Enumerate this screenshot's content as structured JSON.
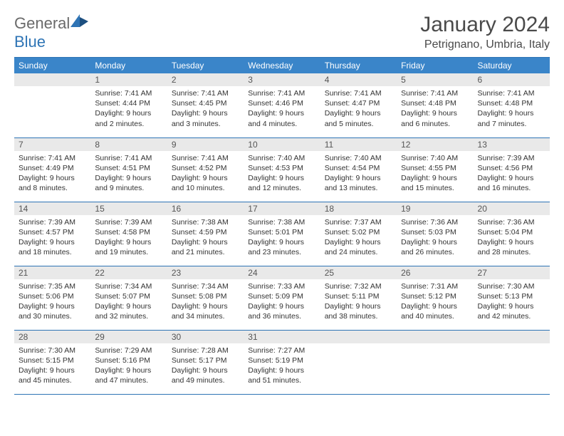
{
  "logo": {
    "word1": "General",
    "word2": "Blue"
  },
  "header": {
    "title": "January 2024",
    "location": "Petrignano, Umbria, Italy"
  },
  "colors": {
    "accent": "#3a85c9",
    "rule": "#2e74b5",
    "dayHeader": "#e9e9e9"
  },
  "weekdays": [
    "Sunday",
    "Monday",
    "Tuesday",
    "Wednesday",
    "Thursday",
    "Friday",
    "Saturday"
  ],
  "weeks": [
    [
      {
        "blank": true
      },
      {
        "n": "1",
        "sunrise": "7:41 AM",
        "sunset": "4:44 PM",
        "dayh": "9",
        "daym": "2"
      },
      {
        "n": "2",
        "sunrise": "7:41 AM",
        "sunset": "4:45 PM",
        "dayh": "9",
        "daym": "3"
      },
      {
        "n": "3",
        "sunrise": "7:41 AM",
        "sunset": "4:46 PM",
        "dayh": "9",
        "daym": "4"
      },
      {
        "n": "4",
        "sunrise": "7:41 AM",
        "sunset": "4:47 PM",
        "dayh": "9",
        "daym": "5"
      },
      {
        "n": "5",
        "sunrise": "7:41 AM",
        "sunset": "4:48 PM",
        "dayh": "9",
        "daym": "6"
      },
      {
        "n": "6",
        "sunrise": "7:41 AM",
        "sunset": "4:48 PM",
        "dayh": "9",
        "daym": "7"
      }
    ],
    [
      {
        "n": "7",
        "sunrise": "7:41 AM",
        "sunset": "4:49 PM",
        "dayh": "9",
        "daym": "8"
      },
      {
        "n": "8",
        "sunrise": "7:41 AM",
        "sunset": "4:51 PM",
        "dayh": "9",
        "daym": "9"
      },
      {
        "n": "9",
        "sunrise": "7:41 AM",
        "sunset": "4:52 PM",
        "dayh": "9",
        "daym": "10"
      },
      {
        "n": "10",
        "sunrise": "7:40 AM",
        "sunset": "4:53 PM",
        "dayh": "9",
        "daym": "12"
      },
      {
        "n": "11",
        "sunrise": "7:40 AM",
        "sunset": "4:54 PM",
        "dayh": "9",
        "daym": "13"
      },
      {
        "n": "12",
        "sunrise": "7:40 AM",
        "sunset": "4:55 PM",
        "dayh": "9",
        "daym": "15"
      },
      {
        "n": "13",
        "sunrise": "7:39 AM",
        "sunset": "4:56 PM",
        "dayh": "9",
        "daym": "16"
      }
    ],
    [
      {
        "n": "14",
        "sunrise": "7:39 AM",
        "sunset": "4:57 PM",
        "dayh": "9",
        "daym": "18"
      },
      {
        "n": "15",
        "sunrise": "7:39 AM",
        "sunset": "4:58 PM",
        "dayh": "9",
        "daym": "19"
      },
      {
        "n": "16",
        "sunrise": "7:38 AM",
        "sunset": "4:59 PM",
        "dayh": "9",
        "daym": "21"
      },
      {
        "n": "17",
        "sunrise": "7:38 AM",
        "sunset": "5:01 PM",
        "dayh": "9",
        "daym": "23"
      },
      {
        "n": "18",
        "sunrise": "7:37 AM",
        "sunset": "5:02 PM",
        "dayh": "9",
        "daym": "24"
      },
      {
        "n": "19",
        "sunrise": "7:36 AM",
        "sunset": "5:03 PM",
        "dayh": "9",
        "daym": "26"
      },
      {
        "n": "20",
        "sunrise": "7:36 AM",
        "sunset": "5:04 PM",
        "dayh": "9",
        "daym": "28"
      }
    ],
    [
      {
        "n": "21",
        "sunrise": "7:35 AM",
        "sunset": "5:06 PM",
        "dayh": "9",
        "daym": "30"
      },
      {
        "n": "22",
        "sunrise": "7:34 AM",
        "sunset": "5:07 PM",
        "dayh": "9",
        "daym": "32"
      },
      {
        "n": "23",
        "sunrise": "7:34 AM",
        "sunset": "5:08 PM",
        "dayh": "9",
        "daym": "34"
      },
      {
        "n": "24",
        "sunrise": "7:33 AM",
        "sunset": "5:09 PM",
        "dayh": "9",
        "daym": "36"
      },
      {
        "n": "25",
        "sunrise": "7:32 AM",
        "sunset": "5:11 PM",
        "dayh": "9",
        "daym": "38"
      },
      {
        "n": "26",
        "sunrise": "7:31 AM",
        "sunset": "5:12 PM",
        "dayh": "9",
        "daym": "40"
      },
      {
        "n": "27",
        "sunrise": "7:30 AM",
        "sunset": "5:13 PM",
        "dayh": "9",
        "daym": "42"
      }
    ],
    [
      {
        "n": "28",
        "sunrise": "7:30 AM",
        "sunset": "5:15 PM",
        "dayh": "9",
        "daym": "45"
      },
      {
        "n": "29",
        "sunrise": "7:29 AM",
        "sunset": "5:16 PM",
        "dayh": "9",
        "daym": "47"
      },
      {
        "n": "30",
        "sunrise": "7:28 AM",
        "sunset": "5:17 PM",
        "dayh": "9",
        "daym": "49"
      },
      {
        "n": "31",
        "sunrise": "7:27 AM",
        "sunset": "5:19 PM",
        "dayh": "9",
        "daym": "51"
      },
      {
        "blank": true
      },
      {
        "blank": true
      },
      {
        "blank": true
      }
    ]
  ],
  "labels": {
    "sunrise": "Sunrise:",
    "sunset": "Sunset:",
    "daylight": "Daylight:",
    "hours": "hours",
    "and": "and",
    "minutes": "minutes."
  }
}
